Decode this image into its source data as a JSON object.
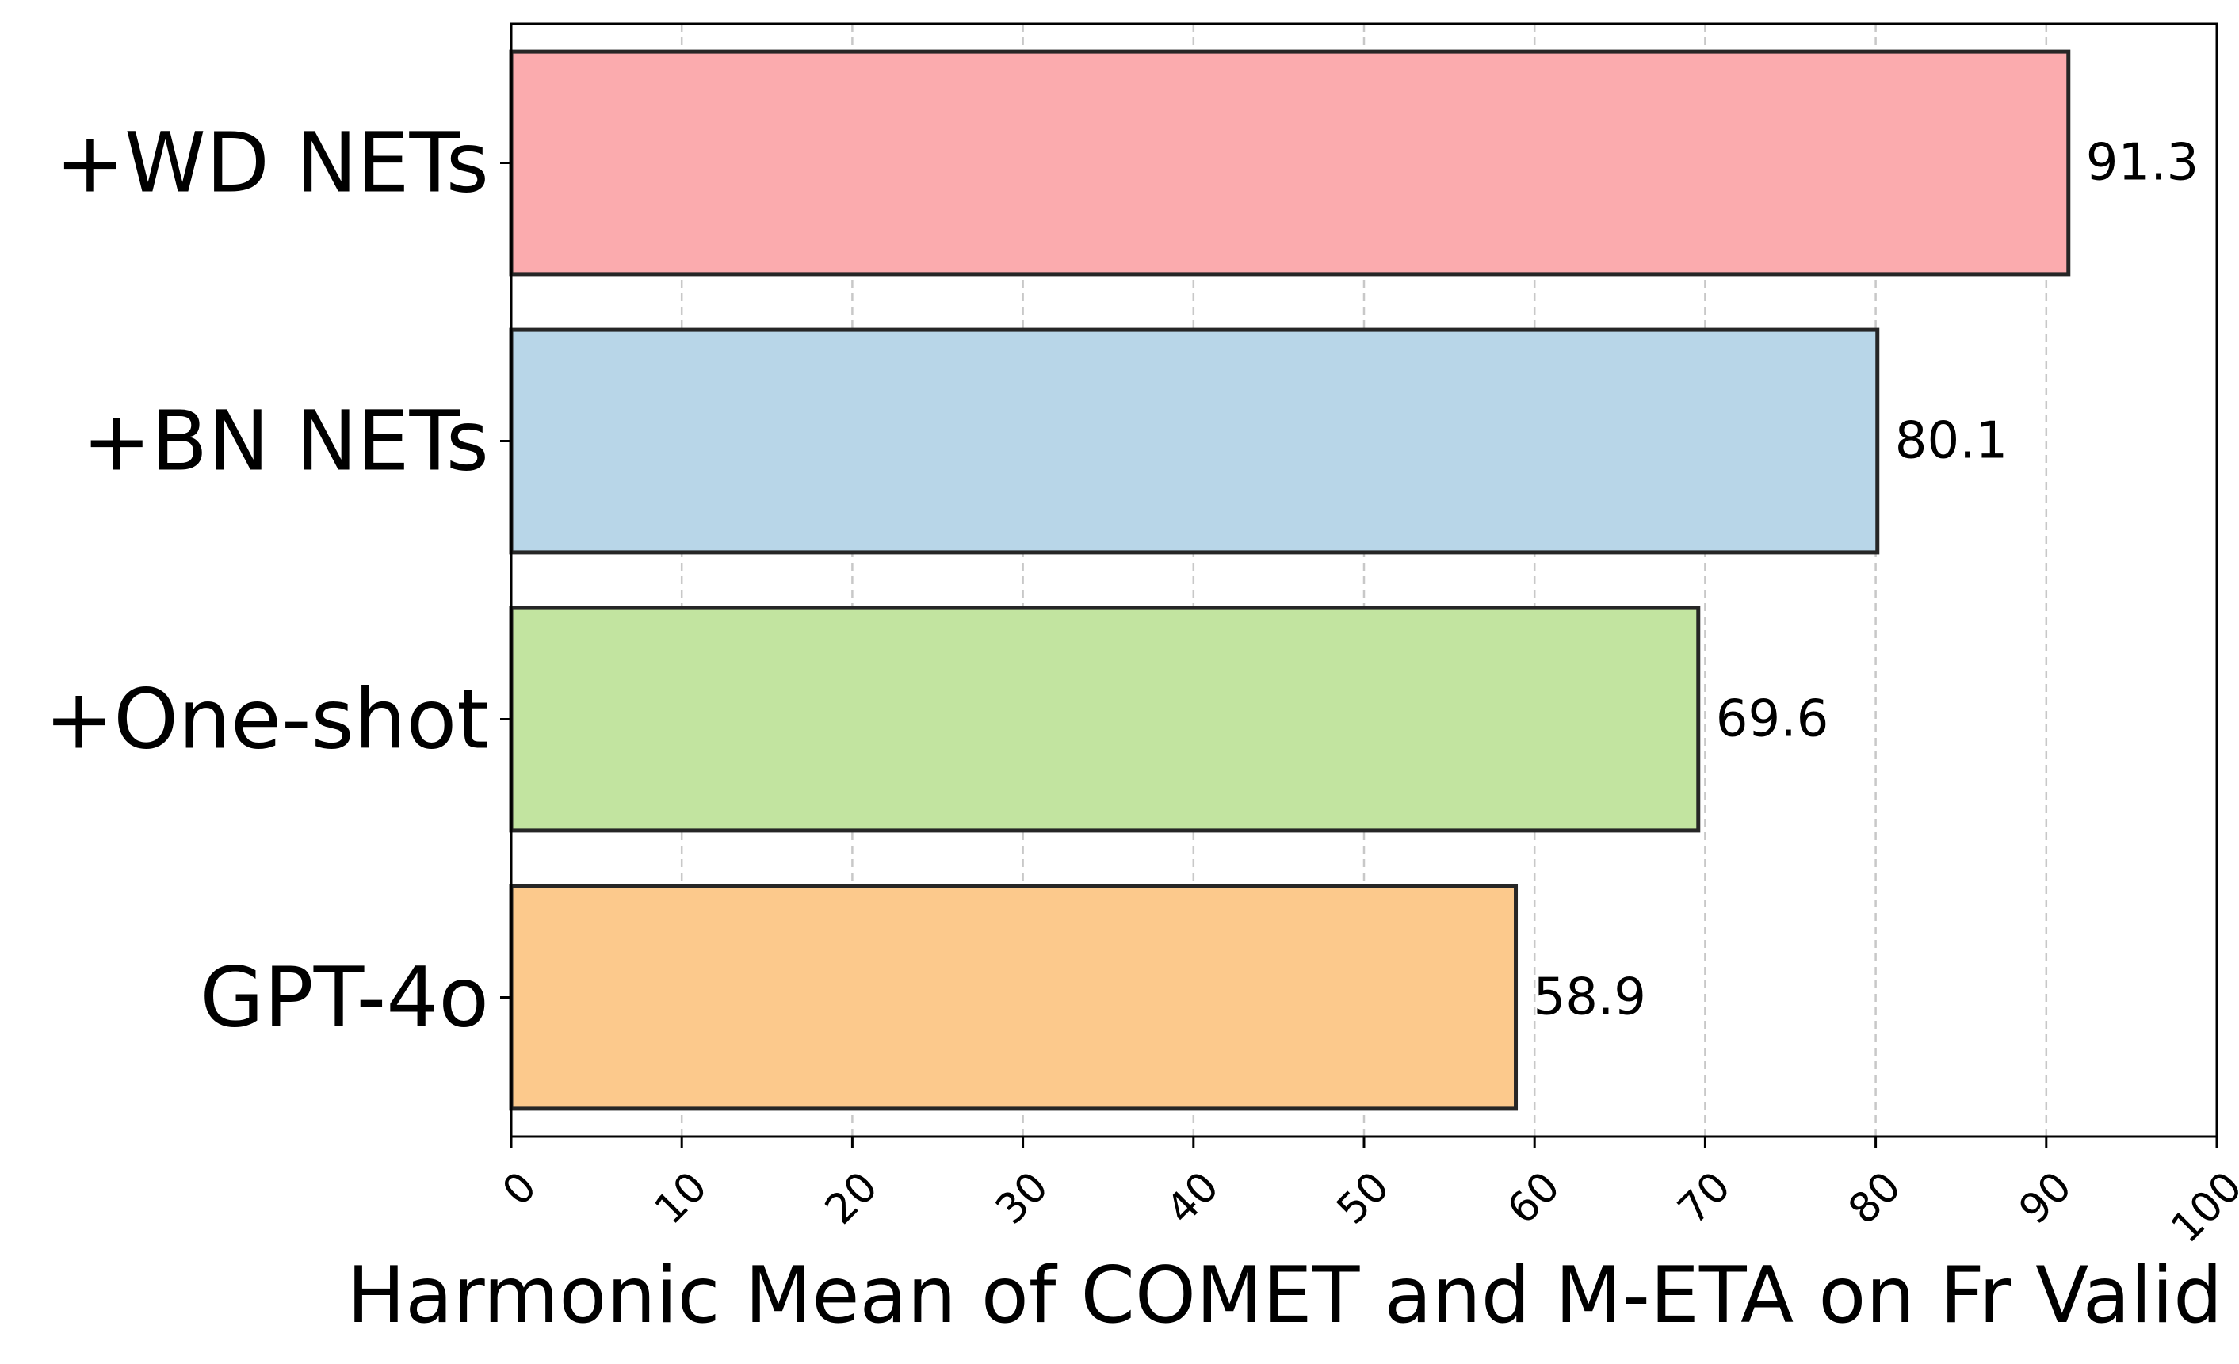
{
  "chart_data": {
    "type": "bar",
    "orientation": "horizontal",
    "categories": [
      "+WD NETs",
      "+BN NETs",
      "+One-shot",
      "GPT-4o"
    ],
    "values": [
      91.3,
      80.1,
      69.6,
      58.9
    ],
    "value_labels": [
      "91.3",
      "80.1",
      "69.6",
      "58.9"
    ],
    "colors": [
      "#fbabae",
      "#b8d6e8",
      "#c2e4a0",
      "#fcc98c"
    ],
    "xlabel": "Harmonic Mean of COMET and M-ETA on Fr Valid",
    "ylabel": "",
    "title": "",
    "xlim": [
      0,
      100
    ],
    "xticks": [
      0,
      10,
      20,
      30,
      40,
      50,
      60,
      70,
      80,
      90,
      100
    ],
    "xtick_labels": [
      "0",
      "10",
      "20",
      "30",
      "40",
      "50",
      "60",
      "70",
      "80",
      "90",
      "100"
    ],
    "grid": "x-dashed",
    "legend": "none"
  }
}
